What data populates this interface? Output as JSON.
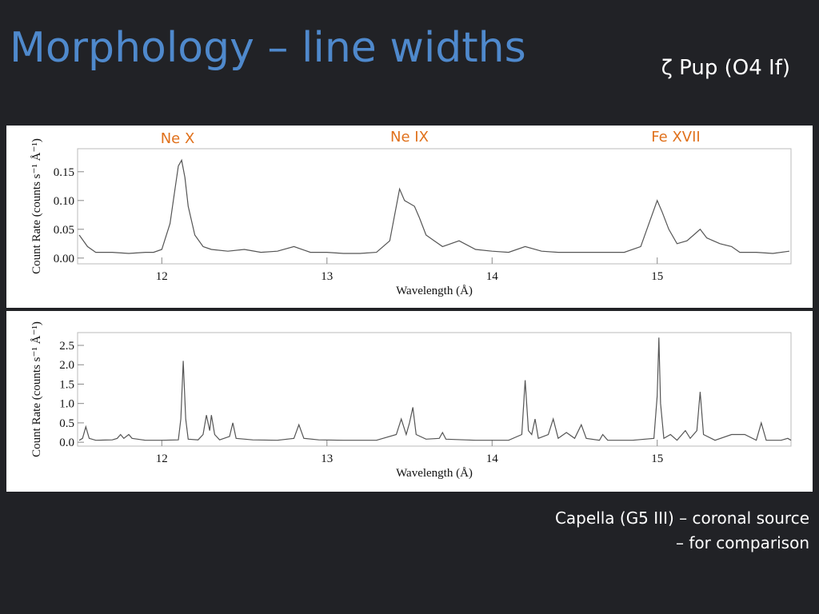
{
  "slide": {
    "title": "Morphology – line widths",
    "subtitle": "ζ Pup (O4 If)",
    "caption": [
      "Capella (G5 III) – coronal source",
      "– for comparison"
    ]
  },
  "chart_data": [
    {
      "type": "line",
      "color": "#555555",
      "xlabel": "Wavelength (Å)",
      "ylabel": "Count Rate (counts s⁻¹ Å⁻¹)",
      "annotations": [
        "Ne X",
        "Ne IX",
        "Fe XVII"
      ],
      "xlim": [
        11.49,
        15.81
      ],
      "ylim": [
        -0.01,
        0.19
      ],
      "xticks": [
        12,
        13,
        14,
        15
      ],
      "yticks": [
        {
          "value": 0,
          "label": "0.00"
        },
        0.05,
        {
          "value": 0.1,
          "label": "0.10"
        },
        0.15
      ],
      "x": [
        11.5,
        11.55,
        11.6,
        11.7,
        11.8,
        11.9,
        11.95,
        12.0,
        12.05,
        12.08,
        12.1,
        12.12,
        12.14,
        12.16,
        12.2,
        12.25,
        12.3,
        12.4,
        12.5,
        12.6,
        12.7,
        12.8,
        12.9,
        13.0,
        13.1,
        13.2,
        13.3,
        13.38,
        13.42,
        13.44,
        13.47,
        13.5,
        13.53,
        13.56,
        13.6,
        13.65,
        13.7,
        13.8,
        13.9,
        14.0,
        14.1,
        14.2,
        14.3,
        14.4,
        14.5,
        14.6,
        14.7,
        14.8,
        14.9,
        14.95,
        15.0,
        15.03,
        15.07,
        15.12,
        15.18,
        15.22,
        15.26,
        15.3,
        15.38,
        15.45,
        15.5,
        15.6,
        15.7,
        15.8
      ],
      "values": [
        0.04,
        0.02,
        0.01,
        0.01,
        0.008,
        0.01,
        0.01,
        0.015,
        0.06,
        0.12,
        0.16,
        0.17,
        0.14,
        0.09,
        0.04,
        0.02,
        0.015,
        0.012,
        0.015,
        0.01,
        0.012,
        0.02,
        0.01,
        0.01,
        0.008,
        0.008,
        0.01,
        0.03,
        0.09,
        0.12,
        0.1,
        0.095,
        0.09,
        0.07,
        0.04,
        0.03,
        0.02,
        0.03,
        0.015,
        0.012,
        0.01,
        0.02,
        0.012,
        0.01,
        0.01,
        0.01,
        0.01,
        0.01,
        0.02,
        0.06,
        0.1,
        0.08,
        0.05,
        0.025,
        0.03,
        0.04,
        0.05,
        0.035,
        0.025,
        0.02,
        0.01,
        0.01,
        0.008,
        0.012
      ]
    },
    {
      "type": "line",
      "color": "#555555",
      "xlabel": "Wavelength (Å)",
      "ylabel": "Count Rate (counts s⁻¹ Å⁻¹)",
      "xlim": [
        11.49,
        15.81
      ],
      "ylim": [
        -0.1,
        2.83
      ],
      "xticks": [
        12,
        13,
        14,
        15
      ],
      "yticks": [
        {
          "value": 0,
          "label": "0.0"
        },
        0.5,
        {
          "value": 1,
          "label": "1.0"
        },
        1.5,
        {
          "value": 2,
          "label": "2.0"
        },
        2.5
      ],
      "x": [
        11.5,
        11.52,
        11.54,
        11.56,
        11.6,
        11.7,
        11.73,
        11.75,
        11.77,
        11.8,
        11.82,
        11.9,
        12.0,
        12.1,
        12.115,
        12.13,
        12.145,
        12.16,
        12.22,
        12.25,
        12.27,
        12.29,
        12.3,
        12.32,
        12.35,
        12.41,
        12.43,
        12.45,
        12.55,
        12.7,
        12.8,
        12.83,
        12.86,
        12.95,
        13.1,
        13.3,
        13.42,
        13.45,
        13.48,
        13.5,
        13.52,
        13.54,
        13.6,
        13.68,
        13.7,
        13.72,
        13.9,
        14.1,
        14.18,
        14.2,
        14.22,
        14.24,
        14.26,
        14.28,
        14.34,
        14.37,
        14.4,
        14.45,
        14.5,
        14.54,
        14.57,
        14.65,
        14.67,
        14.7,
        14.85,
        14.98,
        15.0,
        15.01,
        15.02,
        15.04,
        15.08,
        15.12,
        15.17,
        15.2,
        15.24,
        15.26,
        15.28,
        15.35,
        15.45,
        15.53,
        15.6,
        15.63,
        15.66,
        15.75,
        15.79,
        15.81
      ],
      "values": [
        0.05,
        0.1,
        0.4,
        0.1,
        0.05,
        0.06,
        0.1,
        0.2,
        0.1,
        0.2,
        0.1,
        0.05,
        0.05,
        0.06,
        0.6,
        2.1,
        0.6,
        0.08,
        0.06,
        0.2,
        0.7,
        0.3,
        0.7,
        0.2,
        0.06,
        0.15,
        0.5,
        0.1,
        0.06,
        0.05,
        0.1,
        0.45,
        0.1,
        0.06,
        0.05,
        0.05,
        0.2,
        0.6,
        0.2,
        0.5,
        0.9,
        0.2,
        0.08,
        0.1,
        0.25,
        0.08,
        0.05,
        0.05,
        0.2,
        1.6,
        0.3,
        0.2,
        0.6,
        0.1,
        0.2,
        0.6,
        0.1,
        0.25,
        0.1,
        0.45,
        0.1,
        0.05,
        0.2,
        0.05,
        0.05,
        0.1,
        1.2,
        2.7,
        1.0,
        0.1,
        0.2,
        0.05,
        0.3,
        0.1,
        0.3,
        1.3,
        0.2,
        0.05,
        0.2,
        0.2,
        0.05,
        0.5,
        0.05,
        0.05,
        0.1,
        0.05
      ]
    }
  ]
}
